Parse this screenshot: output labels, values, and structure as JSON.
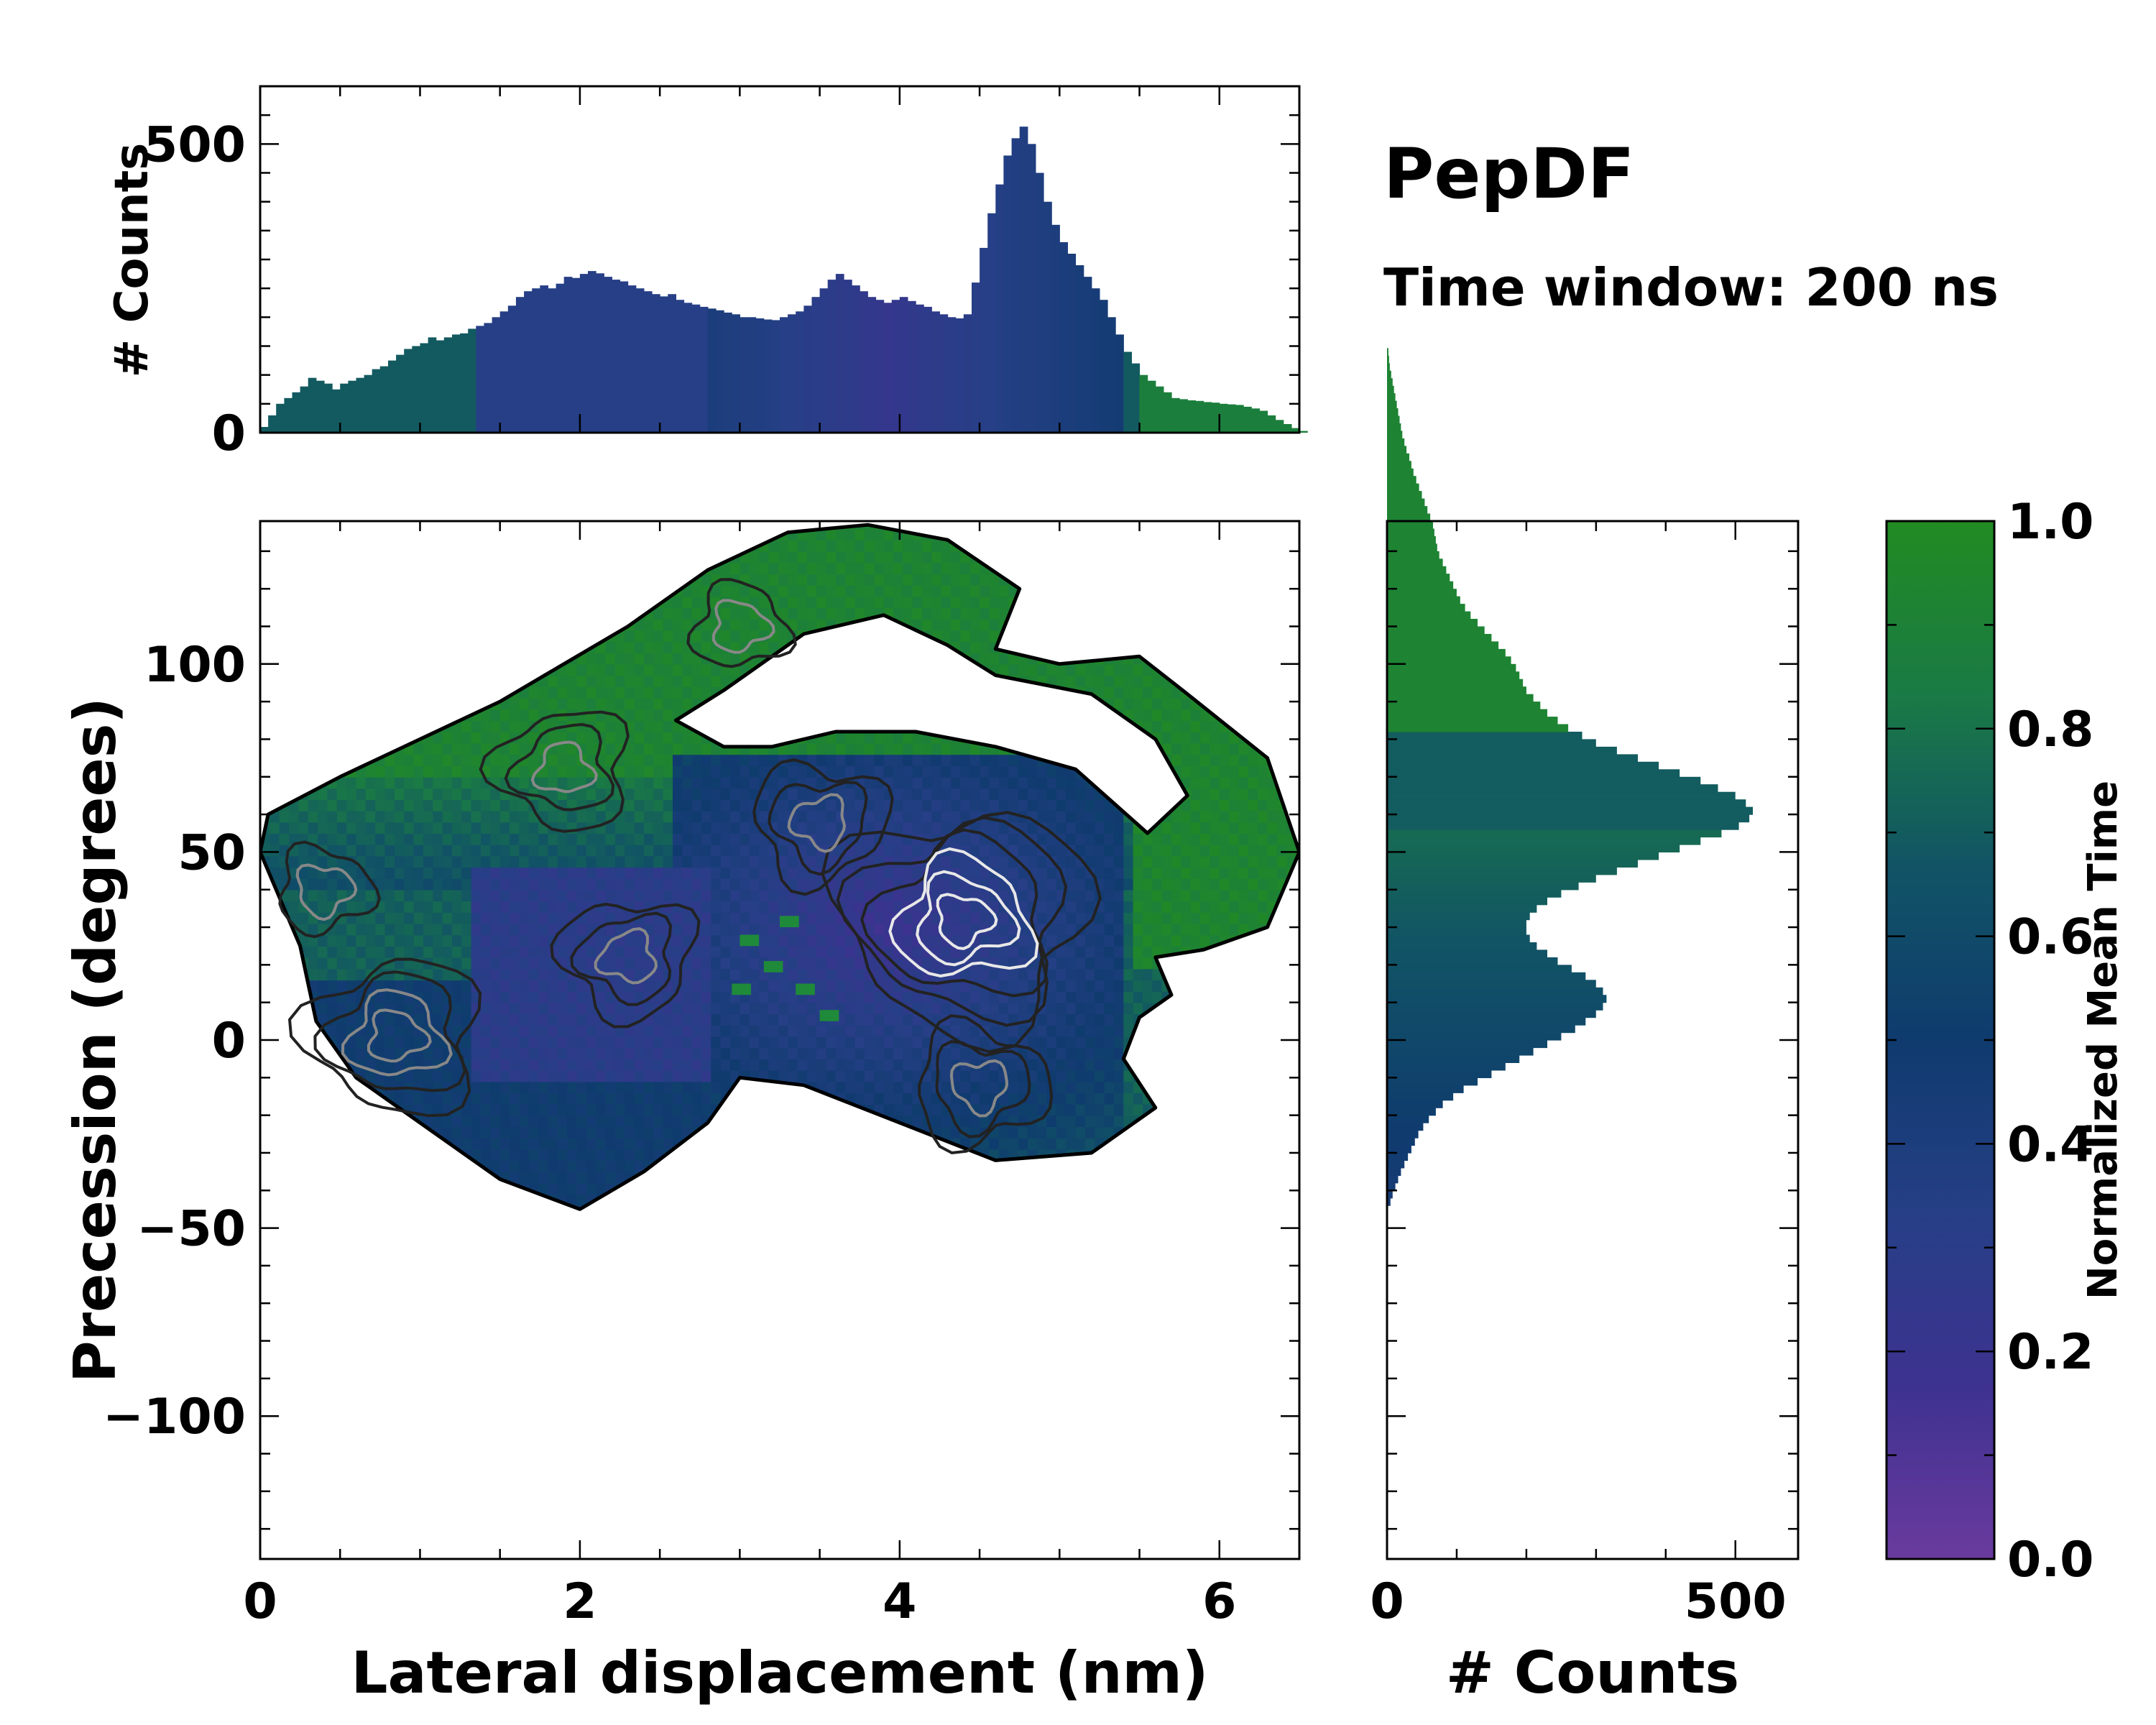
{
  "chart_data": {
    "type": "heatmap",
    "title": "PepDF",
    "subtitle": "Time window: 200 ns",
    "colormap": {
      "label": "Normalized Mean Time",
      "range": [
        0.0,
        1.0
      ],
      "ticks": [
        "0.0",
        "0.2",
        "0.4",
        "0.6",
        "0.8",
        "1.0"
      ],
      "colors": [
        "#6a3a9e",
        "#3d3290",
        "#263f86",
        "#0f3b6e",
        "#115465",
        "#1a7a45",
        "#228b22"
      ]
    },
    "main": {
      "xlabel": "Lateral displacement (nm)",
      "ylabel": "Precession (degrees)",
      "xlim": [
        0,
        6.5
      ],
      "ylim": [
        -138,
        138
      ],
      "xticks": [
        "0",
        "2",
        "4",
        "6"
      ],
      "yticks": [
        "−100",
        "−50",
        "0",
        "50",
        "100"
      ],
      "outline": [
        [
          0.05,
          60
        ],
        [
          0.5,
          70
        ],
        [
          1.0,
          80
        ],
        [
          1.5,
          90
        ],
        [
          1.9,
          100
        ],
        [
          2.3,
          110
        ],
        [
          2.8,
          125
        ],
        [
          3.3,
          135
        ],
        [
          3.8,
          137
        ],
        [
          4.3,
          133
        ],
        [
          4.75,
          120
        ],
        [
          4.6,
          104
        ],
        [
          5.0,
          100
        ],
        [
          5.5,
          102
        ],
        [
          5.8,
          92
        ],
        [
          6.3,
          75
        ],
        [
          6.5,
          50
        ],
        [
          6.3,
          30
        ],
        [
          5.9,
          24
        ],
        [
          5.6,
          22
        ],
        [
          5.7,
          12
        ],
        [
          5.5,
          6
        ],
        [
          5.4,
          -5
        ],
        [
          5.6,
          -18
        ],
        [
          5.2,
          -30
        ],
        [
          4.6,
          -32
        ],
        [
          4.0,
          -22
        ],
        [
          3.4,
          -12
        ],
        [
          3.0,
          -10
        ],
        [
          2.8,
          -22
        ],
        [
          2.4,
          -35
        ],
        [
          2.0,
          -45
        ],
        [
          1.5,
          -37
        ],
        [
          1.1,
          -25
        ],
        [
          0.6,
          -10
        ],
        [
          0.35,
          5
        ],
        [
          0.25,
          25
        ],
        [
          0.1,
          40
        ],
        [
          0.0,
          50
        ]
      ],
      "hole": [
        [
          2.6,
          85
        ],
        [
          2.9,
          93
        ],
        [
          3.4,
          108
        ],
        [
          3.9,
          113
        ],
        [
          4.3,
          105
        ],
        [
          4.6,
          97
        ],
        [
          5.2,
          92
        ],
        [
          5.6,
          80
        ],
        [
          5.8,
          65
        ],
        [
          5.55,
          55
        ],
        [
          5.1,
          72
        ],
        [
          4.6,
          78
        ],
        [
          4.1,
          82
        ],
        [
          3.6,
          82
        ],
        [
          3.2,
          78
        ],
        [
          2.9,
          78
        ]
      ],
      "contour_peaks": [
        {
          "x": 4.4,
          "y": 32,
          "intensity": 1.0
        },
        {
          "x": 0.85,
          "y": 1,
          "intensity": 0.7
        },
        {
          "x": 1.9,
          "y": 72,
          "intensity": 0.55
        },
        {
          "x": 2.3,
          "y": 22,
          "intensity": 0.5
        },
        {
          "x": 3.5,
          "y": 58,
          "intensity": 0.5
        },
        {
          "x": 4.5,
          "y": -12,
          "intensity": 0.45
        },
        {
          "x": 0.4,
          "y": 40,
          "intensity": 0.35
        },
        {
          "x": 3.0,
          "y": 110,
          "intensity": 0.3
        }
      ]
    },
    "top_histogram": {
      "ylabel": "# Counts",
      "ylim": [
        0,
        600
      ],
      "yticks": [
        "0",
        "500"
      ],
      "bin_width": 0.05,
      "x_start": 0.0,
      "values": [
        10,
        30,
        50,
        60,
        70,
        80,
        95,
        90,
        85,
        75,
        85,
        90,
        95,
        100,
        110,
        115,
        125,
        135,
        145,
        150,
        155,
        165,
        160,
        165,
        170,
        172,
        180,
        185,
        190,
        200,
        210,
        220,
        235,
        245,
        250,
        255,
        250,
        258,
        270,
        268,
        275,
        280,
        276,
        270,
        265,
        262,
        255,
        250,
        245,
        240,
        236,
        240,
        230,
        225,
        222,
        218,
        215,
        212,
        208,
        205,
        200,
        200,
        198,
        196,
        195,
        200,
        205,
        210,
        220,
        235,
        250,
        265,
        275,
        265,
        255,
        245,
        235,
        230,
        225,
        230,
        235,
        228,
        222,
        218,
        210,
        205,
        200,
        198,
        205,
        260,
        320,
        380,
        430,
        480,
        510,
        530,
        500,
        450,
        400,
        360,
        330,
        310,
        290,
        270,
        250,
        230,
        200,
        170,
        140,
        120,
        100,
        90,
        80,
        70,
        60,
        58,
        56,
        55,
        53,
        52,
        50,
        49,
        48,
        45,
        42,
        38,
        30,
        22,
        15,
        8,
        3
      ]
    },
    "right_histogram": {
      "xlabel": "# Counts",
      "xlim": [
        0,
        590
      ],
      "xticks": [
        "0",
        "500"
      ],
      "bin_width": 2,
      "y_start": -44,
      "values": [
        5,
        8,
        12,
        16,
        20,
        25,
        30,
        35,
        40,
        45,
        52,
        60,
        70,
        80,
        95,
        110,
        130,
        150,
        170,
        190,
        210,
        230,
        250,
        270,
        285,
        300,
        310,
        315,
        310,
        300,
        285,
        265,
        245,
        230,
        215,
        205,
        200,
        200,
        205,
        215,
        230,
        250,
        275,
        300,
        330,
        360,
        390,
        420,
        450,
        480,
        505,
        520,
        525,
        515,
        500,
        475,
        450,
        420,
        390,
        360,
        330,
        300,
        280,
        260,
        245,
        230,
        220,
        210,
        200,
        195,
        190,
        185,
        178,
        170,
        160,
        150,
        140,
        130,
        120,
        112,
        105,
        100,
        95,
        90,
        85,
        80,
        75,
        72,
        70,
        68,
        66,
        62,
        58,
        54,
        50,
        46,
        42,
        38,
        35,
        32,
        28,
        25,
        22,
        20,
        18,
        16,
        14,
        12,
        10,
        8,
        6,
        4,
        3,
        2
      ]
    }
  }
}
